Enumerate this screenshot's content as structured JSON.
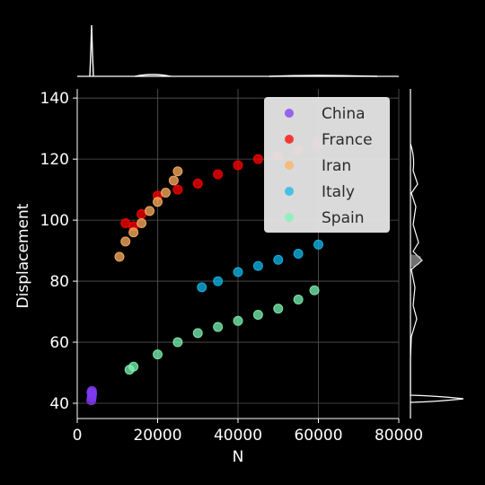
{
  "chart_data": {
    "type": "scatter",
    "xlabel": "N",
    "ylabel": "Displacement",
    "xlim": [
      0,
      80000
    ],
    "ylim": [
      35,
      143
    ],
    "x_ticks": [
      0,
      20000,
      40000,
      60000,
      80000
    ],
    "x_tick_labels": [
      "0",
      "20000",
      "40000",
      "60000",
      "80000"
    ],
    "y_ticks": [
      40,
      60,
      80,
      100,
      120,
      140
    ],
    "y_tick_labels": [
      "40",
      "60",
      "80",
      "100",
      "120",
      "140"
    ],
    "grid": true,
    "legend_position": "top-right",
    "marginals": "kde",
    "series": [
      {
        "name": "China",
        "color": "#7f3bf0",
        "x": [
          3500,
          3600,
          3700,
          3550,
          3650
        ],
        "y": [
          41.0,
          42.0,
          43.0,
          43.5,
          44.0
        ]
      },
      {
        "name": "France",
        "color": "#ff0000",
        "x": [
          12000,
          14000,
          16000,
          20000,
          25000,
          30000,
          35000,
          40000,
          45000,
          50000,
          55000,
          60000
        ],
        "y": [
          99,
          98,
          102,
          108,
          110,
          112,
          115,
          118,
          120,
          121,
          123,
          125
        ]
      },
      {
        "name": "Iran",
        "color": "#ffb061",
        "x": [
          10500,
          12000,
          14000,
          16000,
          18000,
          20000,
          22000,
          24000,
          25000
        ],
        "y": [
          88,
          93,
          96,
          99,
          103,
          106,
          109,
          113,
          116
        ]
      },
      {
        "name": "Italy",
        "color": "#13b8e8",
        "x": [
          31000,
          35000,
          40000,
          45000,
          50000,
          55000,
          60000
        ],
        "y": [
          78,
          80,
          83,
          85,
          87,
          89,
          92
        ]
      },
      {
        "name": "Spain",
        "color": "#7ef4b4",
        "x": [
          13000,
          14000,
          20000,
          25000,
          30000,
          35000,
          40000,
          45000,
          50000,
          55000,
          59000
        ],
        "y": [
          51,
          52,
          56,
          60,
          63,
          65,
          67,
          69,
          71,
          74,
          77
        ]
      }
    ]
  }
}
